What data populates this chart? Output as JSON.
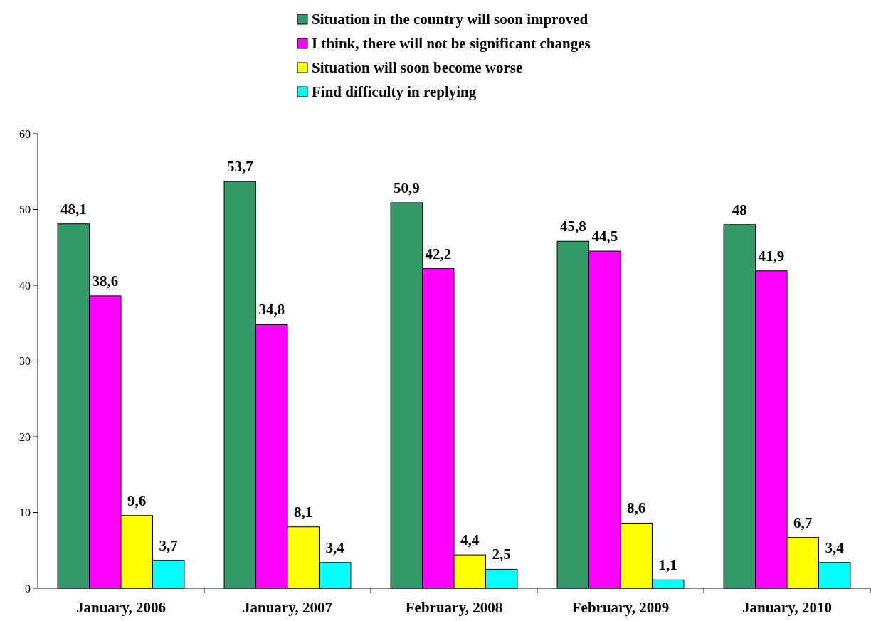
{
  "chart_data": {
    "type": "bar",
    "categories": [
      "January, 2006",
      "January, 2007",
      "February, 2008",
      "February, 2009",
      "January, 2010"
    ],
    "series": [
      {
        "name": "Situation in the country will soon improved",
        "color": "#339966",
        "values": [
          48.1,
          53.7,
          50.9,
          45.8,
          48
        ],
        "value_labels": [
          "48,1",
          "53,7",
          "50,9",
          "45,8",
          "48"
        ]
      },
      {
        "name": "I think, there will not be significant changes",
        "color": "#ff00ff",
        "values": [
          38.6,
          34.8,
          42.2,
          44.5,
          41.9
        ],
        "value_labels": [
          "38,6",
          "34,8",
          "42,2",
          "44,5",
          "41,9"
        ]
      },
      {
        "name": "Situation will soon become worse",
        "color": "#ffff00",
        "values": [
          9.6,
          8.1,
          4.4,
          8.6,
          6.7
        ],
        "value_labels": [
          "9,6",
          "8,1",
          "4,4",
          "8,6",
          "6,7"
        ]
      },
      {
        "name": "Find difficulty in replying",
        "color": "#00ffff",
        "values": [
          3.7,
          3.4,
          2.5,
          1.1,
          3.4
        ],
        "value_labels": [
          "3,7",
          "3,4",
          "2,5",
          "1,1",
          "3,4"
        ]
      }
    ],
    "ylim": [
      0,
      60
    ],
    "yticks": [
      0,
      10,
      20,
      30,
      40,
      50,
      60
    ],
    "legend": "top",
    "grid": false
  }
}
